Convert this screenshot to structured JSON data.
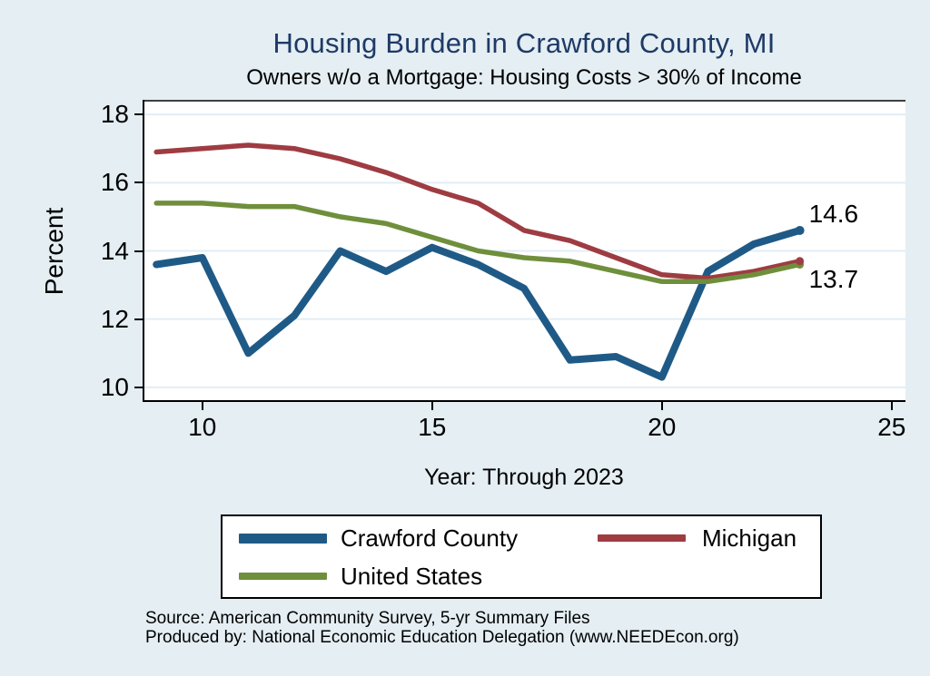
{
  "page": {
    "background_color": "#e4eef3"
  },
  "title": {
    "text": "Housing Burden in Crawford County, MI",
    "color": "#1e3a66"
  },
  "subtitle": "Owners w/o a Mortgage: Housing Costs > 30% of Income",
  "chart_data": {
    "type": "line",
    "title": "Housing Burden in Crawford County, MI",
    "subtitle": "Owners w/o a Mortgage: Housing Costs > 30% of Income",
    "xlabel": "Year: Through 2023",
    "ylabel": "Percent",
    "years": [
      2009,
      2010,
      2011,
      2012,
      2013,
      2014,
      2015,
      2016,
      2017,
      2018,
      2019,
      2020,
      2021,
      2022,
      2023
    ],
    "series": [
      {
        "name": "Crawford County",
        "color": "#1f5a87",
        "line_width": 8,
        "values": [
          13.6,
          13.8,
          11.0,
          12.1,
          14.0,
          13.4,
          14.1,
          13.6,
          12.9,
          10.8,
          10.9,
          10.3,
          13.4,
          14.2,
          14.6
        ]
      },
      {
        "name": "Michigan",
        "color": "#9e3c42",
        "line_width": 5.5,
        "values": [
          16.9,
          17.0,
          17.1,
          17.0,
          16.7,
          16.3,
          15.8,
          15.4,
          14.6,
          14.3,
          13.8,
          13.3,
          13.2,
          13.4,
          13.7
        ]
      },
      {
        "name": "United States",
        "color": "#6f8f3c",
        "line_width": 5.5,
        "values": [
          15.4,
          15.4,
          15.3,
          15.3,
          15.0,
          14.8,
          14.4,
          14.0,
          13.8,
          13.7,
          13.4,
          13.1,
          13.1,
          13.3,
          13.6
        ]
      }
    ],
    "xticks": [
      10,
      15,
      20,
      25
    ],
    "yticks": [
      10,
      12,
      14,
      16,
      18
    ],
    "xlim": [
      8.7,
      25.3
    ],
    "ylim": [
      9.57,
      18.43
    ],
    "grid": true,
    "gridline_color": "#e2edf6",
    "legend_position": "bottom",
    "end_labels": [
      {
        "text": "14.6",
        "series_index": 0
      },
      {
        "text": "13.7",
        "series_index": 1
      }
    ]
  },
  "source": {
    "line1": "Source: American Community Survey, 5-yr Summary Files",
    "line2": "Produced by: National Economic Education Delegation (www.NEEDEcon.org)"
  }
}
